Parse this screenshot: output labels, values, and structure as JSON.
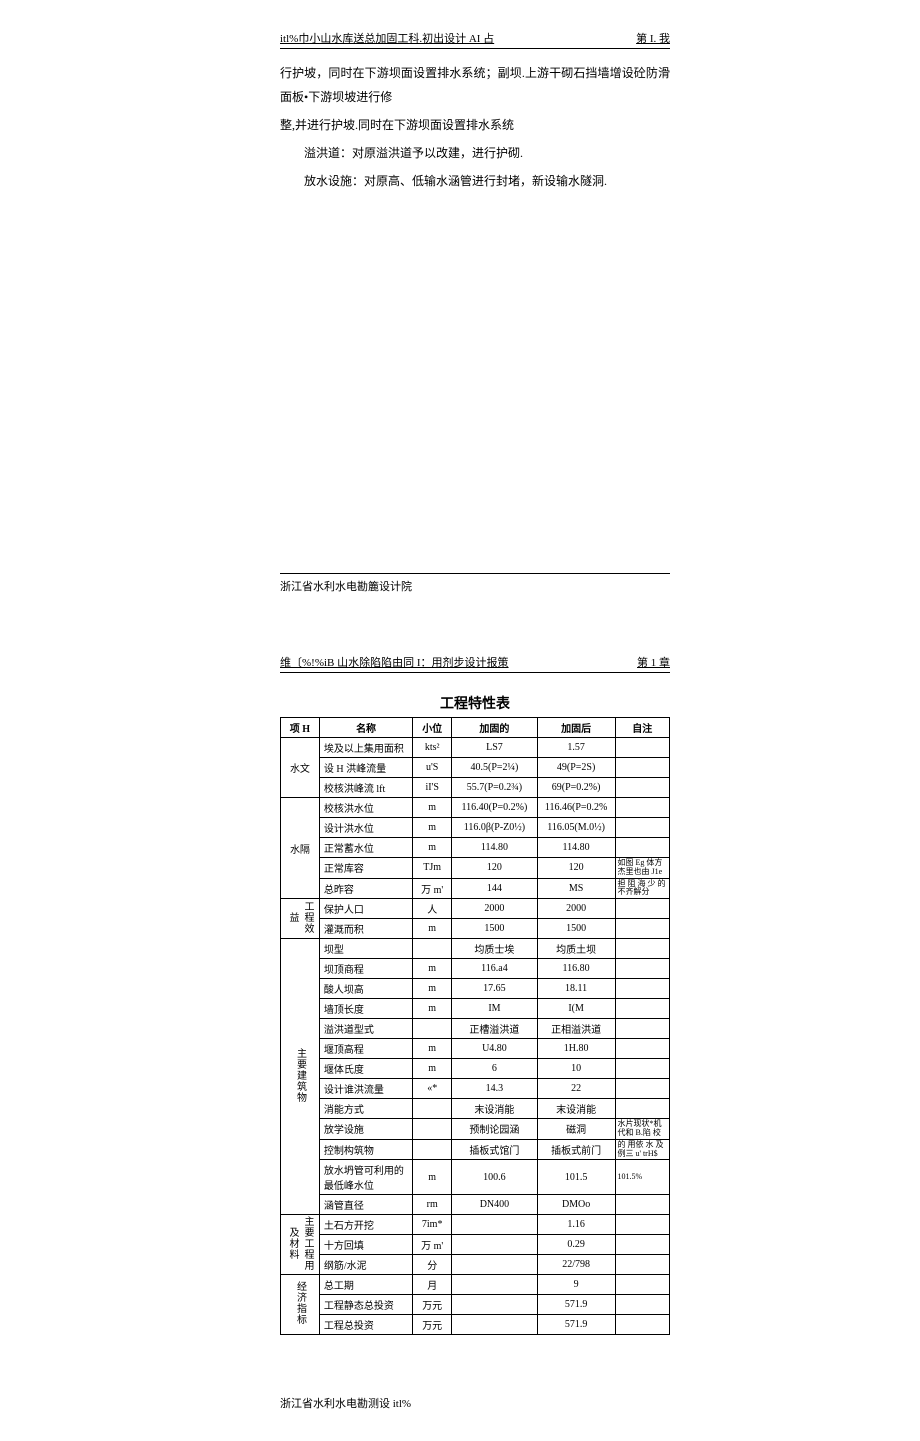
{
  "page1": {
    "header_left": "itl%巾小山水库送总加固工科.初出设计 AI 占",
    "header_right": "第 I. 我",
    "para1": "行护坡，同时在下游坝面设置排水系统；副坝.上游干砌石挡墙增设砼防滑面板•下游坝坡进行修",
    "para2": "整,并进行护坡.同时在下游坝面设置排水系统",
    "para3": "溢洪道：对原溢洪道予以改建，进行护砌.",
    "para4": "放水设施：对原高、低输水涵管进行封堵，新设输水隧洞.",
    "footer": "浙江省水利水电勘簏设计院"
  },
  "page2": {
    "header_left": "维〔%!%iB 山水除陷陷由同 I：用剂步设计报策",
    "header_right": "第 1 章",
    "table_title": "工程特性表",
    "footer": "浙江省水利水电勘测设 itl%",
    "headers": [
      "项 H",
      "名称",
      "小位",
      "加固的",
      "加固后",
      "自注"
    ],
    "groups": {
      "sw": "水文",
      "sk": "水隔",
      "gcxy": "工程效益",
      "zyjzw": "主要建筑物",
      "zygl": "主要工程用及材料",
      "jjzb": "经济指标"
    },
    "rows": [
      {
        "g": "sw",
        "name": "埃及以上集用面积",
        "unit": "kts²",
        "before": "LS7",
        "after": "1.57",
        "note": ""
      },
      {
        "g": "sw",
        "name": "设 H 洪峰流量",
        "unit": "u'S",
        "before": "40.5(P=2¼)",
        "after": "49(P=2S)",
        "note": ""
      },
      {
        "g": "sw",
        "name": "校核洪峰流 lft",
        "unit": "iI'S",
        "before": "55.7(P=0.2¾)",
        "after": "69(P=0.2%)",
        "note": ""
      },
      {
        "g": "sk",
        "name": "校核洪水位",
        "unit": "m",
        "before": "116.40(P=0.2%)",
        "after": "116.46(P=0.2%",
        "note": ""
      },
      {
        "g": "sk",
        "name": "设计洪水位",
        "unit": "m",
        "before": "116.0β(P-Z0½)",
        "after": "116.05(M.0½)",
        "note": ""
      },
      {
        "g": "sk",
        "name": "正常蓄水位",
        "unit": "m",
        "before": "114.80",
        "after": "114.80",
        "note": ""
      },
      {
        "g": "sk",
        "name": "正常库容",
        "unit": "TJm",
        "before": "120",
        "after": "120",
        "note": "如图 Eg 体方杰里也由 J1e"
      },
      {
        "g": "sk",
        "name": "总昨容",
        "unit": "万 m'",
        "before": "144",
        "after": "MS",
        "note": "担 阻 海 少 的不齐解分"
      },
      {
        "g": "gcxy",
        "name": "保护人口",
        "unit": "人",
        "before": "2000",
        "after": "2000",
        "note": ""
      },
      {
        "g": "gcxy",
        "name": "灌溉而积",
        "unit": "m",
        "before": "1500",
        "after": "1500",
        "note": ""
      },
      {
        "g": "zyjzw",
        "name": "坝型",
        "unit": "",
        "before": "均质士埃",
        "after": "均质土坝",
        "note": ""
      },
      {
        "g": "zyjzw",
        "name": "坝顶商程",
        "unit": "m",
        "before": "116.a4",
        "after": "116.80",
        "note": ""
      },
      {
        "g": "zyjzw",
        "name": "酸人坝高",
        "unit": "m",
        "before": "17.65",
        "after": "18.11",
        "note": ""
      },
      {
        "g": "zyjzw",
        "name": "墙顶长度",
        "unit": "m",
        "before": "IM",
        "after": "I(M",
        "note": ""
      },
      {
        "g": "zyjzw",
        "name": "溢洪道型式",
        "unit": "",
        "before": "正槽溢洪道",
        "after": "正相溢洪道",
        "note": ""
      },
      {
        "g": "zyjzw",
        "name": "堰顶高程",
        "unit": "m",
        "before": "U4.80",
        "after": "1H.80",
        "note": ""
      },
      {
        "g": "zyjzw",
        "name": "堰体氏度",
        "unit": "m",
        "before": "6",
        "after": "10",
        "note": ""
      },
      {
        "g": "zyjzw",
        "name": "设计谁洪流量",
        "unit": "«*",
        "before": "14.3",
        "after": "22",
        "note": ""
      },
      {
        "g": "zyjzw",
        "name": "消能方式",
        "unit": "",
        "before": "末设消能",
        "after": "末设消能",
        "note": ""
      },
      {
        "g": "zyjzw",
        "name": "放学设施",
        "unit": "",
        "before": "预制论园涵",
        "after": "磁洞",
        "note": "水片现状*机代和 B.陷 校"
      },
      {
        "g": "zyjzw",
        "name": "控制构筑物",
        "unit": "",
        "before": "插板式馆门",
        "after": "插板式前门",
        "note": "的 用依 水 及例三 u' trH$"
      },
      {
        "g": "zyjzw",
        "name": "放水坍管可利用的最低峰水位",
        "unit": "m",
        "before": "100.6",
        "after": "101.5",
        "note": "101.5%"
      },
      {
        "g": "zyjzw",
        "name": "涵管直径",
        "unit": "rm",
        "before": "DN400",
        "after": "DMOo",
        "note": ""
      },
      {
        "g": "zygl",
        "name": "土石方开挖",
        "unit": "7im*",
        "before": "",
        "after": "1.16",
        "note": ""
      },
      {
        "g": "zygl",
        "name": "十方回填",
        "unit": "万 m'",
        "before": "",
        "after": "0.29",
        "note": ""
      },
      {
        "g": "zygl",
        "name": "纲筋/水泥",
        "unit": "分",
        "before": "",
        "after": "22/798",
        "note": ""
      },
      {
        "g": "jjzb",
        "name": "总工期",
        "unit": "月",
        "before": "",
        "after": "9",
        "note": ""
      },
      {
        "g": "jjzb",
        "name": "工程静态总投资",
        "unit": "万元",
        "before": "",
        "after": "571.9",
        "note": ""
      },
      {
        "g": "jjzb",
        "name": "工程总投资",
        "unit": "万元",
        "before": "",
        "after": "571.9",
        "note": ""
      }
    ]
  }
}
